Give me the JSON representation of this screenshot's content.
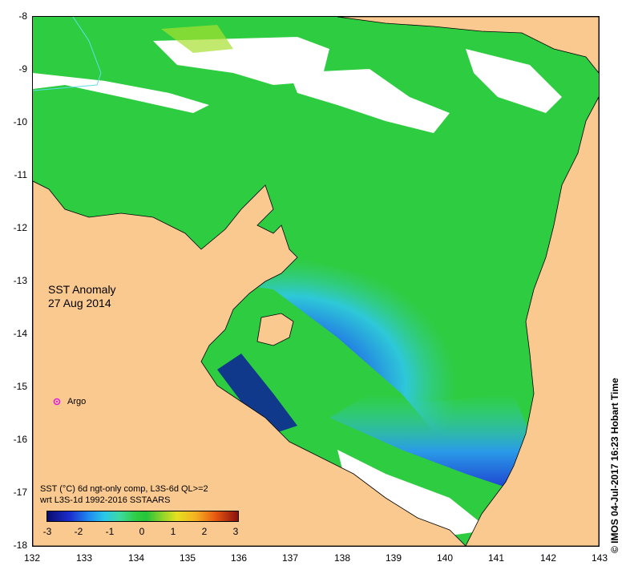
{
  "map": {
    "title_line1": "SST Anomaly",
    "title_line2": "27 Aug 2014",
    "marker_label": "Argo",
    "legend_line1": "SST (°C) 6d ngt-only comp, L3S-6d QL>=2",
    "legend_line2": "wrt L3S-1d 1992-2016 SSTAARS",
    "colorbar_ticks": [
      "-3",
      "-2",
      "-1",
      "0",
      "1",
      "2",
      "3"
    ],
    "y_ticks": [
      "-8",
      "-9",
      "-10",
      "-11",
      "-12",
      "-13",
      "-14",
      "-15",
      "-16",
      "-17",
      "-18"
    ],
    "x_ticks": [
      "132",
      "133",
      "134",
      "135",
      "136",
      "137",
      "138",
      "139",
      "140",
      "141",
      "142",
      "143"
    ],
    "credit": "© IMOS 04-Jul-2017 16:23 Hobart Time"
  },
  "colors": {
    "land": "#f9c990",
    "sea_green": "#2ecc40",
    "cold_blue": "#0a2ea8",
    "cyan": "#35d8d0",
    "marker": "#e020e0"
  }
}
